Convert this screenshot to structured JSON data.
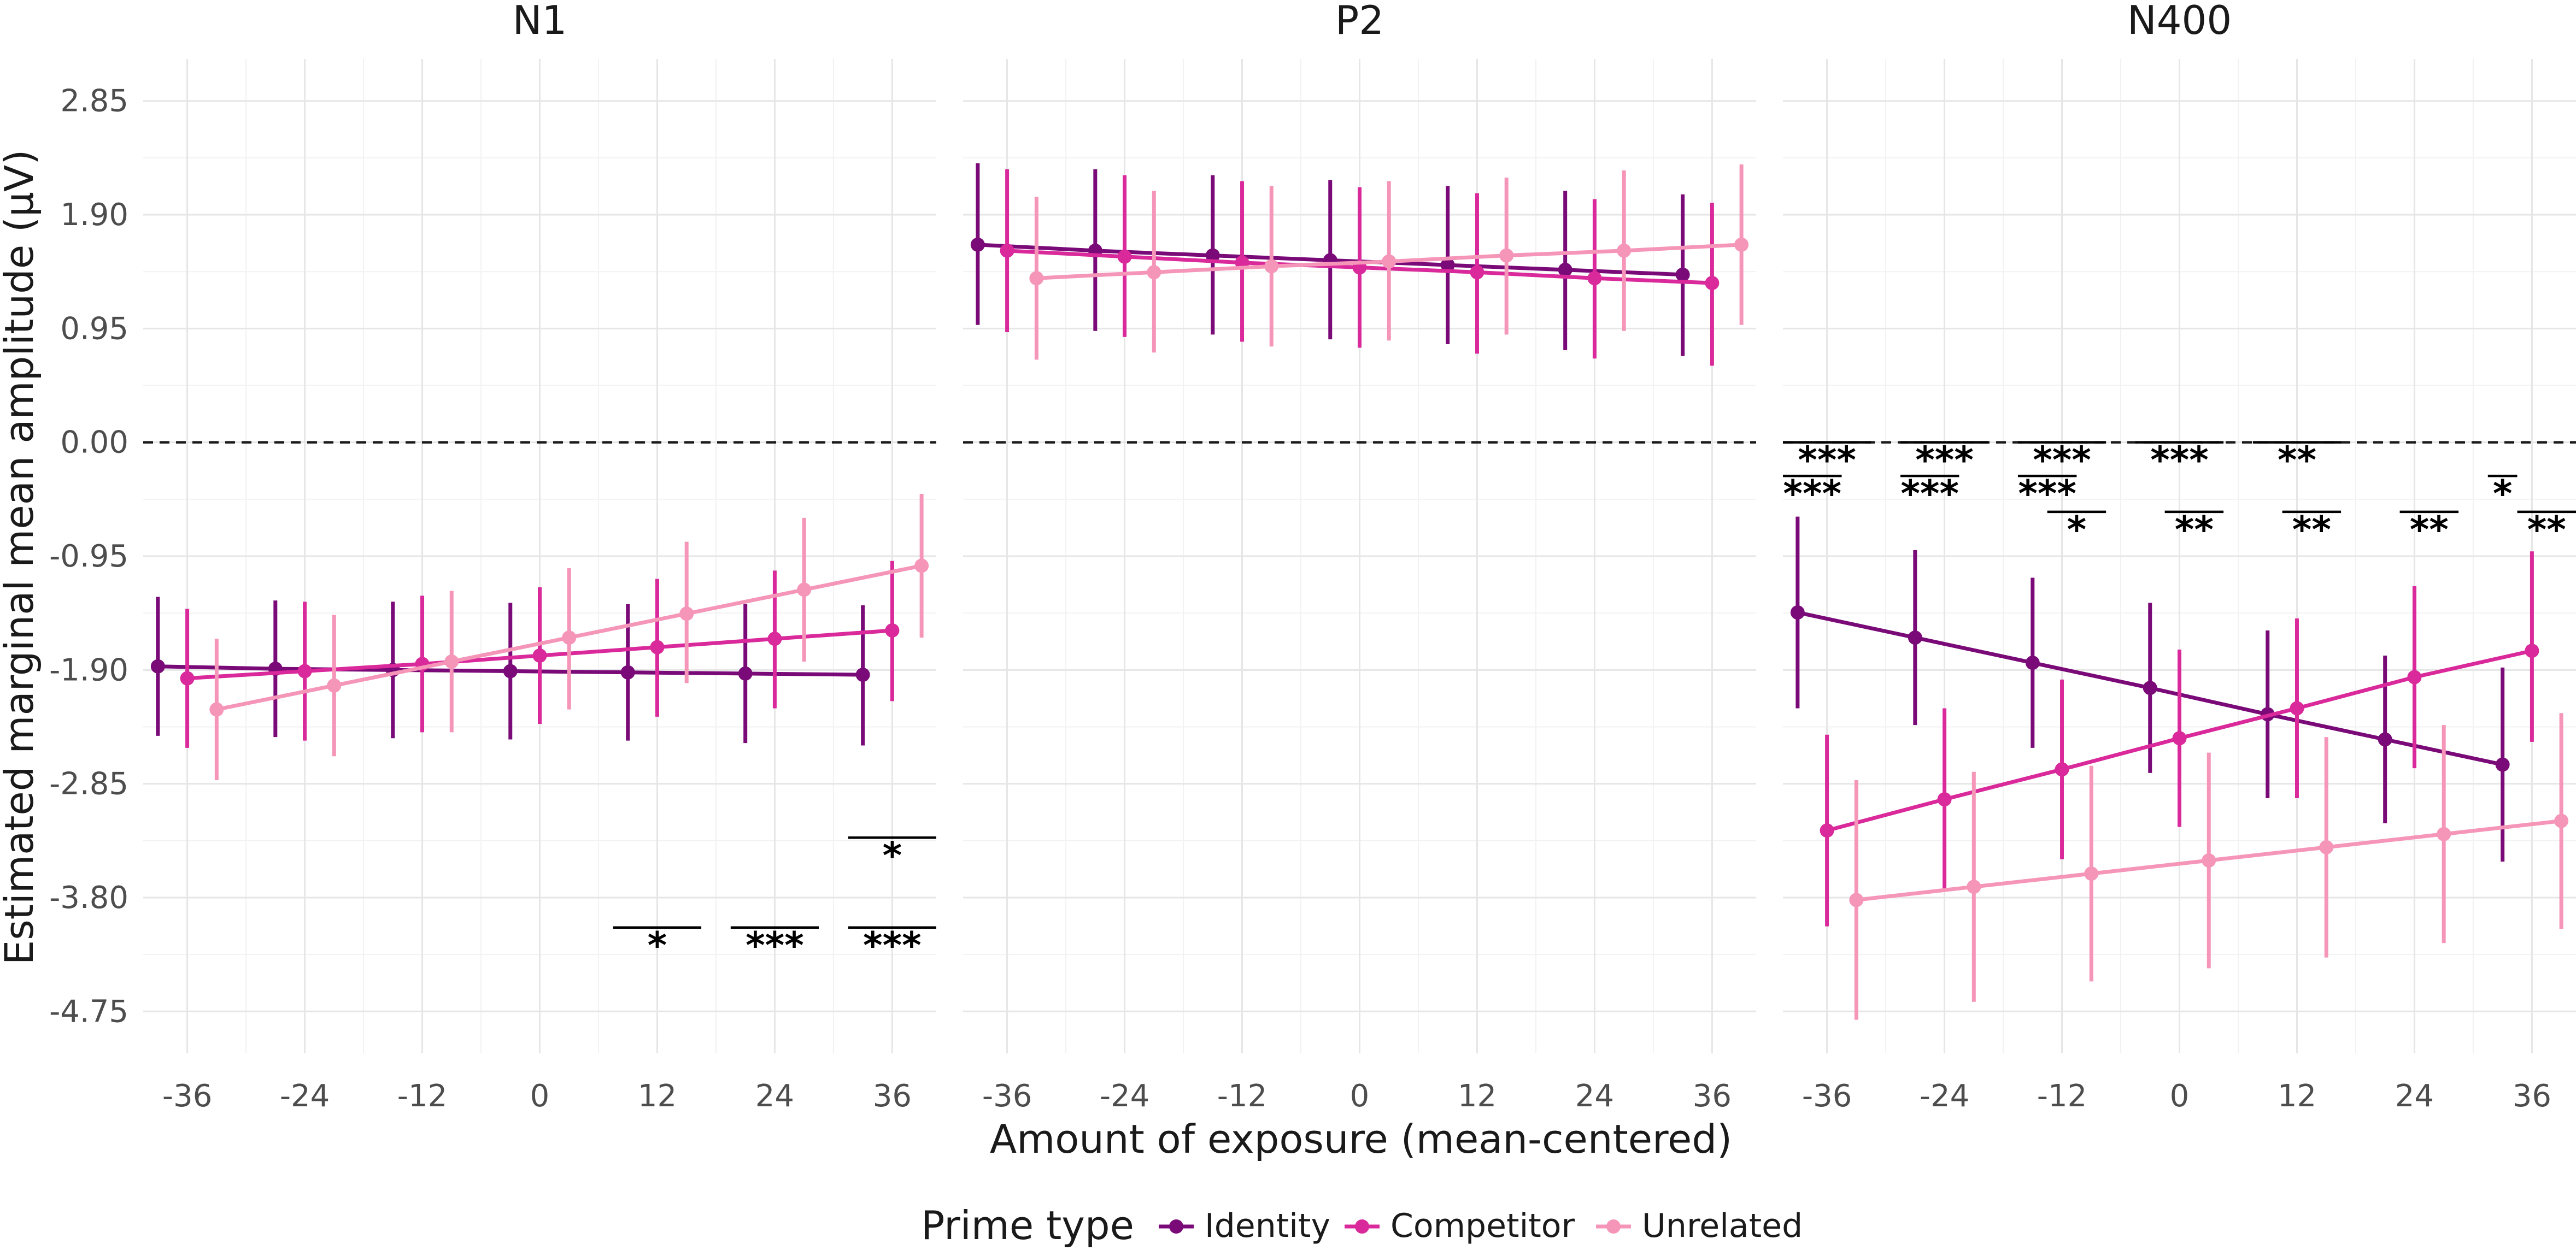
{
  "chart_data": {
    "type": "line",
    "xlabel": "Amount of exposure (mean-centered)",
    "ylabel": "Estimated marginal mean amplitude (µV)",
    "ylim": [
      -5.1,
      3.2
    ],
    "xlim": [
      -40.5,
      40.5
    ],
    "y_ticks": [
      2.85,
      1.9,
      0.95,
      0.0,
      -0.95,
      -1.9,
      -2.85,
      -3.8,
      -4.75
    ],
    "y_tick_labels": [
      "2.85",
      "1.90",
      "0.95",
      "0.00",
      "-0.95",
      "-1.90",
      "-2.85",
      "-3.80",
      "-4.75"
    ],
    "x_ticks": [
      -36,
      -24,
      -12,
      0,
      12,
      24,
      36
    ],
    "x_tick_labels": [
      "-36",
      "-24",
      "-12",
      "0",
      "12",
      "24",
      "36"
    ],
    "reference_line": 0,
    "grid": true,
    "legend": {
      "title": "Prime type",
      "placement": "bottom",
      "entries": [
        "Identity",
        "Competitor",
        "Unrelated"
      ]
    },
    "colors": {
      "Identity": "#7a0a78",
      "Competitor": "#d9299a",
      "Unrelated": "#f595b8"
    },
    "panels": [
      {
        "title": "N1",
        "series": [
          {
            "name": "Identity",
            "x": [
              -39,
              -27,
              -15,
              -3,
              9,
              21,
              33
            ],
            "y": [
              -1.87,
              -1.89,
              -1.9,
              -1.91,
              -1.92,
              -1.93,
              -1.94
            ],
            "lo": [
              -2.45,
              -2.46,
              -2.47,
              -2.48,
              -2.49,
              -2.51,
              -2.53
            ],
            "hi": [
              -1.29,
              -1.32,
              -1.33,
              -1.34,
              -1.35,
              -1.35,
              -1.36
            ]
          },
          {
            "name": "Competitor",
            "x": [
              -36,
              -24,
              -12,
              0,
              12,
              24,
              36
            ],
            "y": [
              -1.97,
              -1.91,
              -1.85,
              -1.78,
              -1.71,
              -1.64,
              -1.57
            ],
            "lo": [
              -2.55,
              -2.49,
              -2.42,
              -2.35,
              -2.29,
              -2.22,
              -2.16
            ],
            "hi": [
              -1.39,
              -1.33,
              -1.28,
              -1.21,
              -1.14,
              -1.07,
              -0.99
            ]
          },
          {
            "name": "Unrelated",
            "x": [
              -33,
              -21,
              -9,
              3,
              15,
              27,
              39
            ],
            "y": [
              -2.23,
              -2.03,
              -1.83,
              -1.63,
              -1.43,
              -1.23,
              -1.03
            ],
            "lo": [
              -2.82,
              -2.62,
              -2.42,
              -2.23,
              -2.01,
              -1.83,
              -1.63
            ],
            "hi": [
              -1.64,
              -1.44,
              -1.24,
              -1.05,
              -0.83,
              -0.63,
              -0.43
            ]
          }
        ],
        "significance": [
          {
            "label": "*",
            "x_from": 31.5,
            "x_to": 40.5,
            "y": -3.3
          },
          {
            "label": "*",
            "x_from": 7.5,
            "x_to": 16.5,
            "y": -4.05
          },
          {
            "label": "***",
            "x_from": 19.5,
            "x_to": 28.5,
            "y": -4.05
          },
          {
            "label": "***",
            "x_from": 31.5,
            "x_to": 40.5,
            "y": -4.05
          }
        ]
      },
      {
        "title": "P2",
        "series": [
          {
            "name": "Identity",
            "x": [
              -39,
              -27,
              -15,
              -3,
              9,
              21,
              33
            ],
            "y": [
              1.65,
              1.6,
              1.56,
              1.52,
              1.48,
              1.44,
              1.4
            ],
            "lo": [
              0.98,
              0.93,
              0.9,
              0.86,
              0.82,
              0.77,
              0.72
            ],
            "hi": [
              2.33,
              2.28,
              2.23,
              2.19,
              2.14,
              2.1,
              2.07
            ]
          },
          {
            "name": "Competitor",
            "x": [
              -36,
              -24,
              -12,
              0,
              12,
              24,
              36
            ],
            "y": [
              1.6,
              1.55,
              1.5,
              1.46,
              1.42,
              1.37,
              1.33
            ],
            "lo": [
              0.92,
              0.88,
              0.84,
              0.79,
              0.74,
              0.7,
              0.64
            ],
            "hi": [
              2.28,
              2.23,
              2.18,
              2.13,
              2.08,
              2.03,
              2.0
            ]
          },
          {
            "name": "Unrelated",
            "x": [
              -33,
              -21,
              -9,
              3,
              15,
              27,
              39
            ],
            "y": [
              1.37,
              1.42,
              1.47,
              1.51,
              1.56,
              1.6,
              1.65
            ],
            "lo": [
              0.69,
              0.75,
              0.8,
              0.85,
              0.9,
              0.93,
              0.98
            ],
            "hi": [
              2.05,
              2.1,
              2.14,
              2.18,
              2.21,
              2.27,
              2.32
            ]
          }
        ],
        "significance": []
      },
      {
        "title": "N400",
        "series": [
          {
            "name": "Identity",
            "x": [
              -39,
              -27,
              -15,
              -3,
              9,
              21,
              33
            ],
            "y": [
              -1.42,
              -1.63,
              -1.84,
              -2.05,
              -2.27,
              -2.48,
              -2.69
            ],
            "lo": [
              -2.22,
              -2.36,
              -2.55,
              -2.76,
              -2.97,
              -3.18,
              -3.5
            ],
            "hi": [
              -0.62,
              -0.9,
              -1.13,
              -1.34,
              -1.57,
              -1.78,
              -1.88
            ]
          },
          {
            "name": "Competitor",
            "x": [
              -36,
              -24,
              -12,
              0,
              12,
              24,
              36
            ],
            "y": [
              -3.24,
              -2.98,
              -2.73,
              -2.47,
              -2.22,
              -1.96,
              -1.74
            ],
            "lo": [
              -4.04,
              -3.74,
              -3.48,
              -3.21,
              -2.97,
              -2.72,
              -2.5
            ],
            "hi": [
              -2.44,
              -2.22,
              -1.98,
              -1.73,
              -1.47,
              -1.2,
              -0.91
            ]
          },
          {
            "name": "Unrelated",
            "x": [
              -33,
              -21,
              -9,
              3,
              15,
              27,
              39
            ],
            "y": [
              -3.82,
              -3.71,
              -3.6,
              -3.49,
              -3.38,
              -3.27,
              -3.16
            ],
            "lo": [
              -4.82,
              -4.67,
              -4.5,
              -4.39,
              -4.3,
              -4.18,
              -4.06
            ],
            "hi": [
              -2.82,
              -2.75,
              -2.7,
              -2.59,
              -2.46,
              -2.36,
              -2.26
            ]
          }
        ],
        "significance": [
          {
            "label": "***",
            "x_from": -40.5,
            "x_to": -31.5,
            "y": 0.0
          },
          {
            "label": "***",
            "x_from": -28.5,
            "x_to": -19.5,
            "y": 0.0
          },
          {
            "label": "***",
            "x_from": -16.5,
            "x_to": -7.5,
            "y": 0.0
          },
          {
            "label": "***",
            "x_from": -4.5,
            "x_to": 4.5,
            "y": 0.0
          },
          {
            "label": "**",
            "x_from": 7.5,
            "x_to": 16.5,
            "y": 0.0
          },
          {
            "label": "***",
            "x_from": -40.5,
            "x_to": -34.5,
            "y": -0.28
          },
          {
            "label": "***",
            "x_from": -28.5,
            "x_to": -22.5,
            "y": -0.28
          },
          {
            "label": "***",
            "x_from": -16.5,
            "x_to": -10.5,
            "y": -0.28
          },
          {
            "label": "*",
            "x_from": 31.5,
            "x_to": 34.5,
            "y": -0.28
          },
          {
            "label": "*",
            "x_from": -13.5,
            "x_to": -7.5,
            "y": -0.58
          },
          {
            "label": "**",
            "x_from": -1.5,
            "x_to": 4.5,
            "y": -0.58
          },
          {
            "label": "**",
            "x_from": 10.5,
            "x_to": 16.5,
            "y": -0.58
          },
          {
            "label": "**",
            "x_from": 22.5,
            "x_to": 28.5,
            "y": -0.58
          },
          {
            "label": "**",
            "x_from": 34.5,
            "x_to": 40.5,
            "y": -0.58
          }
        ]
      }
    ]
  }
}
